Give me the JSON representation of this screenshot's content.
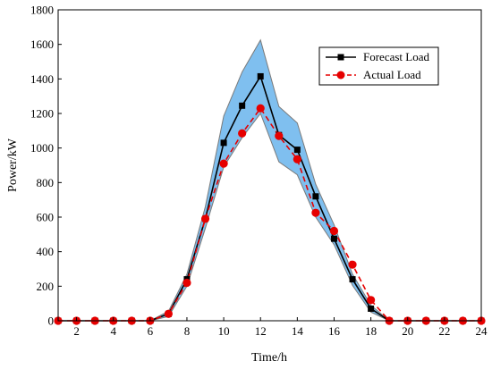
{
  "chart_data": {
    "type": "line",
    "xlabel": "Time/h",
    "ylabel": "Power/kW",
    "xlim": [
      1,
      24
    ],
    "ylim": [
      0,
      1800
    ],
    "x_ticks": [
      2,
      4,
      6,
      8,
      10,
      12,
      14,
      16,
      18,
      20,
      22,
      24
    ],
    "y_ticks": [
      0,
      200,
      400,
      600,
      800,
      1000,
      1200,
      1400,
      1600,
      1800
    ],
    "legend_position": "top-right",
    "grid": false,
    "x": [
      1,
      2,
      3,
      4,
      5,
      6,
      7,
      8,
      9,
      10,
      11,
      12,
      13,
      14,
      15,
      16,
      17,
      18,
      19,
      20,
      21,
      22,
      23,
      24
    ],
    "series": [
      {
        "name": "Forecast Load",
        "color": "#000000",
        "style": "solid",
        "marker": "square",
        "values": [
          0,
          0,
          0,
          0,
          0,
          0,
          40,
          240,
          590,
          1030,
          1245,
          1415,
          1075,
          990,
          720,
          475,
          240,
          70,
          0,
          0,
          0,
          0,
          0,
          0
        ]
      },
      {
        "name": "Actual Load",
        "color": "#e60000",
        "style": "dashed",
        "marker": "circle",
        "values": [
          0,
          0,
          0,
          0,
          0,
          0,
          40,
          220,
          590,
          910,
          1085,
          1230,
          1070,
          935,
          625,
          520,
          325,
          120,
          0,
          0,
          0,
          0,
          0,
          0
        ]
      }
    ],
    "band": {
      "color": "#7fbfef",
      "x": [
        6,
        7,
        8,
        9,
        10,
        11,
        12,
        13,
        14,
        15,
        16,
        17,
        18,
        19
      ],
      "upper": [
        0,
        55,
        270,
        660,
        1185,
        1440,
        1625,
        1240,
        1145,
        790,
        555,
        270,
        90,
        0
      ],
      "lower": [
        0,
        25,
        200,
        535,
        890,
        1060,
        1200,
        920,
        845,
        600,
        440,
        205,
        50,
        0
      ]
    }
  }
}
